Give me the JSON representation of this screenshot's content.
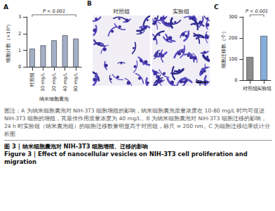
{
  "chart_data": [
    {
      "type": "bar",
      "title": "A",
      "y_label": "细胞计数（×10⁴）",
      "x_label": "纳米细胞囊泡",
      "categories": [
        "对照组",
        "10 mg/L",
        "20 mg/L",
        "40 mg/L",
        "80 mg/L"
      ],
      "values": [
        1.1,
        1.3,
        1.6,
        1.9,
        1.7
      ],
      "color": "#a3afc6",
      "ylim": [
        0,
        3
      ],
      "yticks": [
        0,
        1,
        2,
        3
      ],
      "annotation": "P < 0.001",
      "grid": false
    },
    {
      "type": "bar",
      "title": "C",
      "y_label": "细胞迁移数（个）",
      "categories": [
        "对照组",
        "实验组"
      ],
      "values": [
        110,
        210
      ],
      "colors": [
        "#8c8c8c",
        "#86aedb"
      ],
      "ylim": [
        0,
        300
      ],
      "yticks": [
        0,
        100,
        200,
        300
      ],
      "annotation": "P < 0.001",
      "grid": false
    }
  ],
  "panel_b": {
    "label": "B",
    "images": [
      "对照组",
      "实验组"
    ]
  },
  "caption": {
    "notes": "图注：A 为纳米细胞囊泡对 NIH-3T3 细胞增殖的影响，纳米细胞囊泡质量浓度在 10-80 mg/L 时均可促进 NIH-3T3 细胞的增殖，其最佳作用质量浓度为 40 mg/L。B 为纳米细胞囊泡对 NIH-3T3 细胞迁移的影响，24 h 时实验组（纳米囊泡组）的细胞迁移数量明显高于对照组，标尺 = 200 nm。C 为细胞迁移结果统计分析图",
    "title_cn": "图 3 | 纳米细胞囊泡对 NIH-3T3 细胞增殖、迁移的影响",
    "title_en": "Figure 3 | Effect of nanocellular vesicles on NIH-3T3 cell proliferation and migration"
  }
}
